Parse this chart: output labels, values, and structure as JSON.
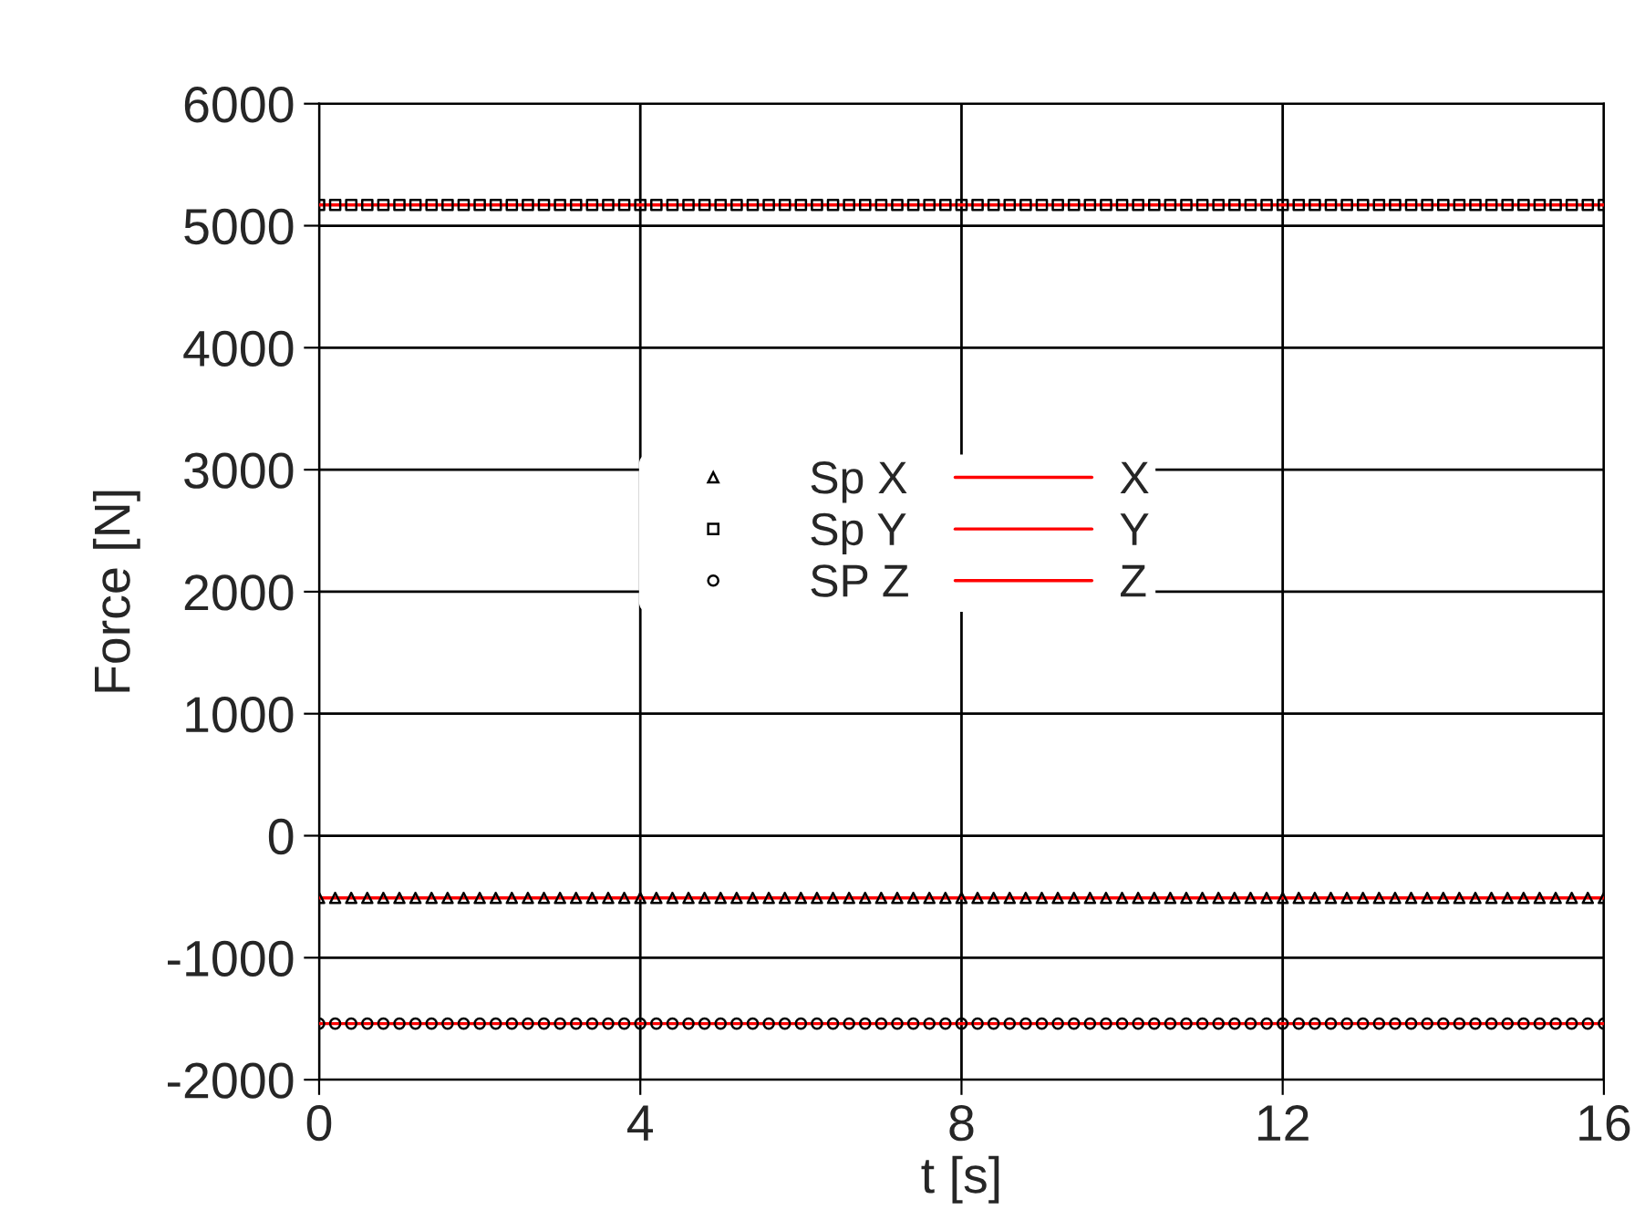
{
  "chart_data": {
    "type": "scatter",
    "xlabel": "t [s]",
    "ylabel": "Force [N]",
    "xlim": [
      0,
      16
    ],
    "xticks": [
      0,
      4,
      8,
      12,
      16
    ],
    "ylim": [
      -2000,
      6000
    ],
    "yticks": [
      -2000,
      -1000,
      0,
      1000,
      2000,
      3000,
      4000,
      5000,
      6000
    ],
    "grid": true,
    "legend": "center",
    "x": [
      0,
      0.2,
      0.4,
      0.6,
      0.8,
      1,
      1.2,
      1.4,
      1.6,
      1.8,
      2,
      2.2,
      2.4,
      2.6,
      2.8,
      3,
      3.2,
      3.4,
      3.6,
      3.8,
      4,
      4.2,
      4.4,
      4.6,
      4.8,
      5,
      5.2,
      5.4,
      5.6,
      5.8,
      6,
      6.2,
      6.4,
      6.6,
      6.8,
      7,
      7.2,
      7.4,
      7.6,
      7.8,
      8,
      8.2,
      8.4,
      8.6,
      8.8,
      9,
      9.2,
      9.4,
      9.6,
      9.8,
      10,
      10.2,
      10.4,
      10.6,
      10.8,
      11,
      11.2,
      11.4,
      11.6,
      11.8,
      12,
      12.2,
      12.4,
      12.6,
      12.8,
      13,
      13.2,
      13.4,
      13.6,
      13.8,
      14,
      14.2,
      14.4,
      14.6,
      14.8,
      15,
      15.2,
      15.4,
      15.6,
      15.8,
      16
    ],
    "series": [
      {
        "name": "Sp X",
        "marker": "triangle",
        "color": "#000000",
        "values": [
          -510,
          -510,
          -510,
          -510,
          -510,
          -510,
          -510,
          -510,
          -510,
          -510,
          -510,
          -510,
          -510,
          -510,
          -510,
          -510,
          -510,
          -510,
          -510,
          -510,
          -510,
          -510,
          -510,
          -510,
          -510,
          -510,
          -510,
          -510,
          -510,
          -510,
          -510,
          -510,
          -510,
          -510,
          -510,
          -510,
          -510,
          -510,
          -510,
          -510,
          -510,
          -510,
          -510,
          -510,
          -510,
          -510,
          -510,
          -510,
          -510,
          -510,
          -510,
          -510,
          -510,
          -510,
          -510,
          -510,
          -510,
          -510,
          -510,
          -510,
          -510,
          -510,
          -510,
          -510,
          -510,
          -510,
          -510,
          -510,
          -510,
          -510,
          -510,
          -510,
          -510,
          -510,
          -510,
          -510,
          -510,
          -510,
          -510,
          -510,
          -510
        ]
      },
      {
        "name": "Sp Y",
        "marker": "square",
        "color": "#000000",
        "values": [
          5170,
          5170,
          5170,
          5170,
          5170,
          5170,
          5170,
          5170,
          5170,
          5170,
          5170,
          5170,
          5170,
          5170,
          5170,
          5170,
          5170,
          5170,
          5170,
          5170,
          5170,
          5170,
          5170,
          5170,
          5170,
          5170,
          5170,
          5170,
          5170,
          5170,
          5170,
          5170,
          5170,
          5170,
          5170,
          5170,
          5170,
          5170,
          5170,
          5170,
          5170,
          5170,
          5170,
          5170,
          5170,
          5170,
          5170,
          5170,
          5170,
          5170,
          5170,
          5170,
          5170,
          5170,
          5170,
          5170,
          5170,
          5170,
          5170,
          5170,
          5170,
          5170,
          5170,
          5170,
          5170,
          5170,
          5170,
          5170,
          5170,
          5170,
          5170,
          5170,
          5170,
          5170,
          5170,
          5170,
          5170,
          5170,
          5170,
          5170,
          5170
        ]
      },
      {
        "name": "SP Z",
        "marker": "circle",
        "color": "#000000",
        "values": [
          -1540,
          -1540,
          -1540,
          -1540,
          -1540,
          -1540,
          -1540,
          -1540,
          -1540,
          -1540,
          -1540,
          -1540,
          -1540,
          -1540,
          -1540,
          -1540,
          -1540,
          -1540,
          -1540,
          -1540,
          -1540,
          -1540,
          -1540,
          -1540,
          -1540,
          -1540,
          -1540,
          -1540,
          -1540,
          -1540,
          -1540,
          -1540,
          -1540,
          -1540,
          -1540,
          -1540,
          -1540,
          -1540,
          -1540,
          -1540,
          -1540,
          -1540,
          -1540,
          -1540,
          -1540,
          -1540,
          -1540,
          -1540,
          -1540,
          -1540,
          -1540,
          -1540,
          -1540,
          -1540,
          -1540,
          -1540,
          -1540,
          -1540,
          -1540,
          -1540,
          -1540,
          -1540,
          -1540,
          -1540,
          -1540,
          -1540,
          -1540,
          -1540,
          -1540,
          -1540,
          -1540,
          -1540,
          -1540,
          -1540,
          -1540,
          -1540,
          -1540,
          -1540,
          -1540,
          -1540,
          -1540
        ]
      },
      {
        "name": "X",
        "type": "line",
        "marker": "none",
        "line_style": "solid",
        "color": "#ff0000",
        "values": [
          -510,
          -510,
          -510,
          -510,
          -510,
          -510,
          -510,
          -510,
          -510,
          -510,
          -510,
          -510,
          -510,
          -510,
          -510,
          -510,
          -510,
          -510,
          -510,
          -510,
          -510,
          -510,
          -510,
          -510,
          -510,
          -510,
          -510,
          -510,
          -510,
          -510,
          -510,
          -510,
          -510,
          -510,
          -510,
          -510,
          -510,
          -510,
          -510,
          -510,
          -510,
          -510,
          -510,
          -510,
          -510,
          -510,
          -510,
          -510,
          -510,
          -510,
          -510,
          -510,
          -510,
          -510,
          -510,
          -510,
          -510,
          -510,
          -510,
          -510,
          -510,
          -510,
          -510,
          -510,
          -510,
          -510,
          -510,
          -510,
          -510,
          -510,
          -510,
          -510,
          -510,
          -510,
          -510,
          -510,
          -510,
          -510,
          -510,
          -510,
          -510
        ]
      },
      {
        "name": "Y",
        "type": "line",
        "marker": "none",
        "line_style": "solid",
        "color": "#ff0000",
        "values": [
          5170,
          5170,
          5170,
          5170,
          5170,
          5170,
          5170,
          5170,
          5170,
          5170,
          5170,
          5170,
          5170,
          5170,
          5170,
          5170,
          5170,
          5170,
          5170,
          5170,
          5170,
          5170,
          5170,
          5170,
          5170,
          5170,
          5170,
          5170,
          5170,
          5170,
          5170,
          5170,
          5170,
          5170,
          5170,
          5170,
          5170,
          5170,
          5170,
          5170,
          5170,
          5170,
          5170,
          5170,
          5170,
          5170,
          5170,
          5170,
          5170,
          5170,
          5170,
          5170,
          5170,
          5170,
          5170,
          5170,
          5170,
          5170,
          5170,
          5170,
          5170,
          5170,
          5170,
          5170,
          5170,
          5170,
          5170,
          5170,
          5170,
          5170,
          5170,
          5170,
          5170,
          5170,
          5170,
          5170,
          5170,
          5170,
          5170,
          5170,
          5170
        ]
      },
      {
        "name": "Z",
        "type": "line",
        "marker": "none",
        "line_style": "solid",
        "color": "#ff0000",
        "values": [
          -1540,
          -1540,
          -1540,
          -1540,
          -1540,
          -1540,
          -1540,
          -1540,
          -1540,
          -1540,
          -1540,
          -1540,
          -1540,
          -1540,
          -1540,
          -1540,
          -1540,
          -1540,
          -1540,
          -1540,
          -1540,
          -1540,
          -1540,
          -1540,
          -1540,
          -1540,
          -1540,
          -1540,
          -1540,
          -1540,
          -1540,
          -1540,
          -1540,
          -1540,
          -1540,
          -1540,
          -1540,
          -1540,
          -1540,
          -1540,
          -1540,
          -1540,
          -1540,
          -1540,
          -1540,
          -1540,
          -1540,
          -1540,
          -1540,
          -1540,
          -1540,
          -1540,
          -1540,
          -1540,
          -1540,
          -1540,
          -1540,
          -1540,
          -1540,
          -1540,
          -1540,
          -1540,
          -1540,
          -1540,
          -1540,
          -1540,
          -1540,
          -1540,
          -1540,
          -1540,
          -1540,
          -1540,
          -1540,
          -1540,
          -1540,
          -1540,
          -1540,
          -1540,
          -1540,
          -1540,
          -1540
        ]
      }
    ]
  }
}
